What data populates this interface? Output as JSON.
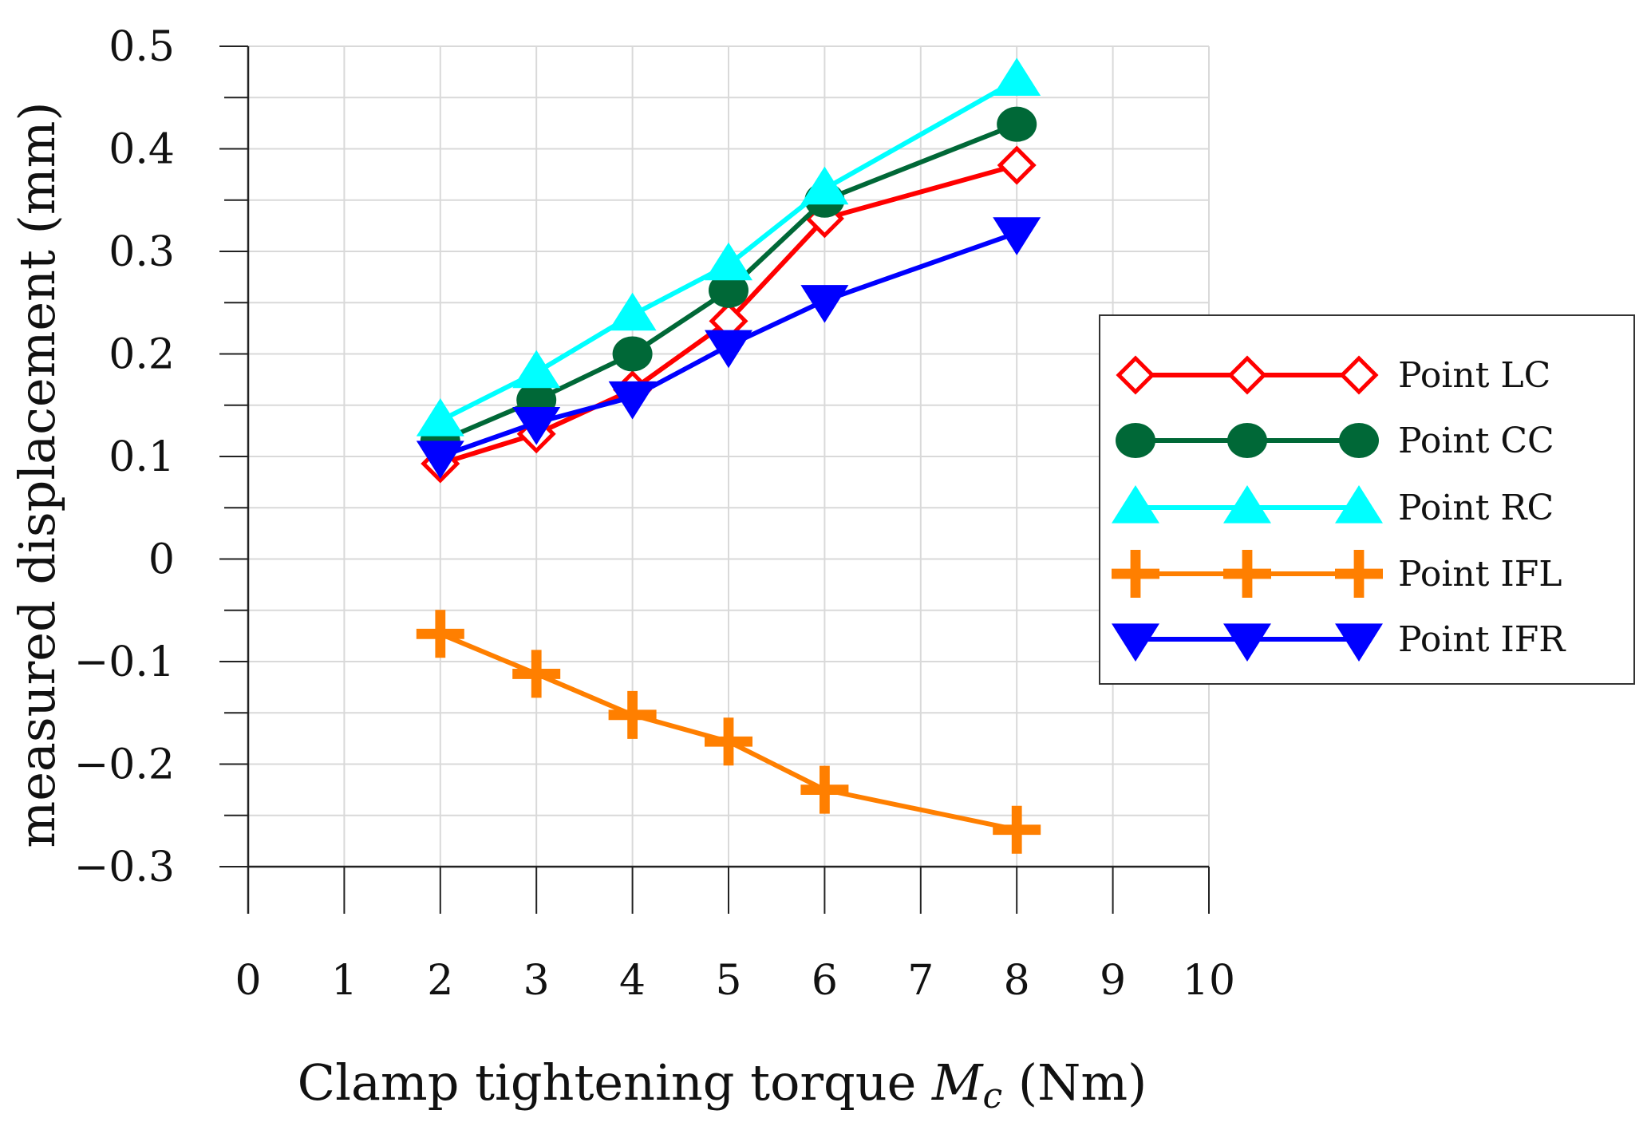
{
  "chart_data": {
    "type": "line",
    "title": "",
    "xlabel_main": "Clamp tightening torque ",
    "xlabel_symbol": "M",
    "xlabel_subscript": "c",
    "xlabel_unit": " (Nm)",
    "ylabel": "measured displacement  (mm)",
    "xlim": [
      0,
      10
    ],
    "ylim": [
      -0.3,
      0.5
    ],
    "x_ticks": [
      0,
      1,
      2,
      3,
      4,
      5,
      6,
      7,
      8,
      9,
      10
    ],
    "y_ticks": [
      -0.3,
      -0.2,
      -0.1,
      0,
      0.1,
      0.2,
      0.3,
      0.4,
      0.5
    ],
    "y_tick_labels": [
      "−0.3",
      "−0.2",
      "−0.1",
      "0",
      "0.1",
      "0.2",
      "0.3",
      "0.4",
      "0.5"
    ],
    "x_tick_labels": [
      "0",
      "1",
      "2",
      "3",
      "4",
      "5",
      "6",
      "7",
      "8",
      "9",
      "10"
    ],
    "grid": true,
    "legend_position": "right",
    "x": [
      2,
      3,
      4,
      5,
      6,
      8
    ],
    "series": [
      {
        "name": "Point LC",
        "color": "#ff0000",
        "marker": "diamond-open",
        "values": [
          0.093,
          0.122,
          0.165,
          0.232,
          0.332,
          0.384
        ]
      },
      {
        "name": "Point CC",
        "color": "#006837",
        "marker": "circle",
        "values": [
          0.115,
          0.155,
          0.2,
          0.262,
          0.35,
          0.424
        ]
      },
      {
        "name": "Point RC",
        "color": "#00ffff",
        "marker": "triangle-up",
        "values": [
          0.135,
          0.182,
          0.238,
          0.287,
          0.361,
          0.467
        ]
      },
      {
        "name": "Point IFL",
        "color": "#ff7f00",
        "marker": "plus",
        "values": [
          -0.073,
          -0.112,
          -0.152,
          -0.178,
          -0.225,
          -0.264
        ]
      },
      {
        "name": "Point IFR",
        "color": "#0000ff",
        "marker": "triangle-down",
        "values": [
          0.1,
          0.133,
          0.158,
          0.208,
          0.252,
          0.318
        ]
      }
    ]
  }
}
